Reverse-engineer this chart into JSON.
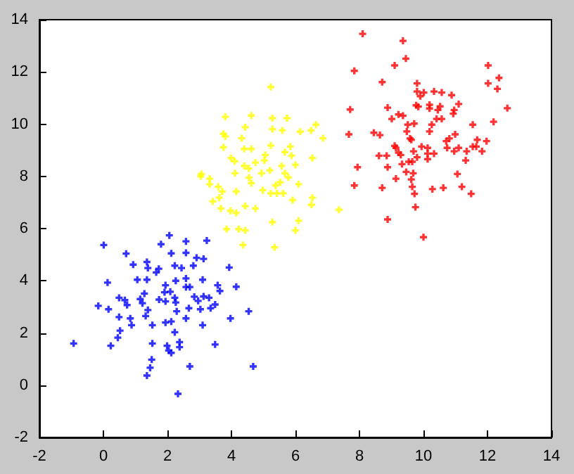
{
  "chart_data": {
    "type": "scatter",
    "xlim": [
      -2,
      14
    ],
    "ylim": [
      -2,
      14
    ],
    "xticks": [
      -2,
      0,
      2,
      4,
      6,
      8,
      10,
      12,
      14
    ],
    "yticks": [
      -2,
      0,
      2,
      4,
      6,
      8,
      10,
      12,
      14
    ],
    "grid": false,
    "marker": "cross",
    "series": [
      {
        "color": "#0000ff",
        "x": [
          2.06,
          0.01,
          1.8,
          2.58,
          0.71,
          2.12,
          2.58,
          2.91,
          3.13,
          3.23,
          1.36,
          0.93,
          1.39,
          1.73,
          2.23,
          2.44,
          2.81,
          1.65,
          3.93,
          0.13,
          1.06,
          1.36,
          1.94,
          2.26,
          2.58,
          3.1,
          2.58,
          2.7,
          3.57,
          4.15,
          1.91,
          2.09,
          1.28,
          2.23,
          0.49,
          0.67,
          1.15,
          2.84,
          3.13,
          3.3,
          3.64,
          1.74,
          1.94,
          2.26,
          2.96,
          3.49,
          -0.16,
          0.74,
          1.22,
          0.16,
          1.39,
          2.29,
          2.67,
          3.03,
          3.35,
          4.54,
          0.49,
          1.32,
          0.84,
          2.58,
          3.97,
          1.94,
          2.12,
          0.88,
          1.53,
          3.1,
          2.23,
          0.52,
          0.45,
          -0.93,
          0.23,
          1.53,
          1.99,
          2.38,
          2.04,
          2.38,
          2.12,
          3.49,
          1.51,
          1.46,
          1.36,
          2.7,
          4.68,
          2.33
        ],
        "values": [
          5.74,
          5.37,
          5.4,
          5.51,
          5.04,
          5.05,
          5.07,
          4.88,
          4.84,
          5.54,
          4.72,
          4.62,
          4.49,
          4.46,
          4.58,
          4.49,
          4.58,
          4.32,
          4.51,
          3.93,
          4.04,
          4.04,
          3.83,
          4.0,
          4.09,
          4.04,
          3.76,
          3.76,
          3.83,
          3.77,
          3.56,
          3.58,
          3.51,
          3.35,
          3.35,
          3.26,
          3.3,
          3.39,
          3.4,
          3.35,
          3.61,
          3.28,
          3.21,
          3.17,
          3.23,
          3.09,
          3.04,
          3.07,
          3.14,
          2.91,
          2.88,
          2.83,
          2.95,
          2.91,
          2.95,
          2.83,
          2.61,
          2.65,
          2.56,
          2.56,
          2.56,
          2.4,
          2.44,
          2.3,
          2.3,
          2.3,
          2.03,
          2.09,
          1.82,
          1.6,
          1.51,
          1.6,
          1.51,
          1.65,
          1.33,
          1.46,
          1.24,
          1.56,
          0.98,
          0.67,
          0.37,
          0.72,
          0.72,
          -0.33
        ]
      },
      {
        "color": "#ffff00",
        "x": [
          5.23,
          3.81,
          4.62,
          5.28,
          5.74,
          4.43,
          5.28,
          5.59,
          6.15,
          6.49,
          6.64,
          6.86,
          3.75,
          3.81,
          4.32,
          3.75,
          4.4,
          4.62,
          5.23,
          5.84,
          5.67,
          5.88,
          5.06,
          3.99,
          4.1,
          4.75,
          5.03,
          6.0,
          6.53,
          4.4,
          4.54,
          5.57,
          5.2,
          5.67,
          4.94,
          4.11,
          3.06,
          3.32,
          4.55,
          5.78,
          6.1,
          4.62,
          3.32,
          5.38,
          5.52,
          3.59,
          3.71,
          4.15,
          4.98,
          5.23,
          5.42,
          5.62,
          3.62,
          3.42,
          6.53,
          5.91,
          4.43,
          4.75,
          3.67,
          3.97,
          4.15,
          6.5,
          7.36,
          5.28,
          6.1,
          3.85,
          4.23,
          4.43,
          6.0,
          4.36,
          5.35,
          3.04
        ],
        "values": [
          11.42,
          10.28,
          10.33,
          10.23,
          10.23,
          9.88,
          9.81,
          9.76,
          9.71,
          9.76,
          9.98,
          9.46,
          9.63,
          9.53,
          9.46,
          9.11,
          9.05,
          9.05,
          9.18,
          9.14,
          8.93,
          8.79,
          8.82,
          8.7,
          8.58,
          8.53,
          8.61,
          8.44,
          8.7,
          8.4,
          8.3,
          8.4,
          8.23,
          8.12,
          8.12,
          8.12,
          8.09,
          7.91,
          7.95,
          7.96,
          7.7,
          7.74,
          7.7,
          7.65,
          7.77,
          7.6,
          7.42,
          7.42,
          7.47,
          7.35,
          7.35,
          7.35,
          7.18,
          7.04,
          7.18,
          7.09,
          6.86,
          6.77,
          6.77,
          6.68,
          6.6,
          6.91,
          6.72,
          6.25,
          6.3,
          5.98,
          5.98,
          5.93,
          5.93,
          5.37,
          5.28,
          8.0
        ]
      },
      {
        "color": "#ff0000",
        "x": [
          8.1,
          9.36,
          9.45,
          9.1,
          7.84,
          8.71,
          12.02,
          12.36,
          12.02,
          12.31,
          12.62,
          9.8,
          9.8,
          9.9,
          10.01,
          10.33,
          10.57,
          10.88,
          11.1,
          10.96,
          10.93,
          10.52,
          10.45,
          10.19,
          10.19,
          9.77,
          9.84,
          8.88,
          7.71,
          9.22,
          9.36,
          9.01,
          9.71,
          9.51,
          10.41,
          10.57,
          10.26,
          11.54,
          12.19,
          10.19,
          9.48,
          8.45,
          8.64,
          7.67,
          9.58,
          9.62,
          10.99,
          10.81,
          10.71,
          11.68,
          11.97,
          9.1,
          9.14,
          9.94,
          10.13,
          10.74,
          10.96,
          11.1,
          11.35,
          11.54,
          11.65,
          11.83,
          9.22,
          9.29,
          8.61,
          8.85,
          9.69,
          10.13,
          10.33,
          9.8,
          10.13,
          11.32,
          9.33,
          9.54,
          9.65,
          8.88,
          7.94,
          9.46,
          9.68,
          11.06,
          9.14,
          9.62,
          7.84,
          8.71,
          9.65,
          10.28,
          10.62,
          11.2,
          11.49,
          9.72,
          9.75,
          8.88,
          10.0
        ],
        "values": [
          13.46,
          13.19,
          12.51,
          12.25,
          12.04,
          11.61,
          12.25,
          11.77,
          11.56,
          11.35,
          10.61,
          11.56,
          11.25,
          11.07,
          11.21,
          11.25,
          11.21,
          11.11,
          10.77,
          10.54,
          10.4,
          10.68,
          10.54,
          10.74,
          10.6,
          10.72,
          10.67,
          10.63,
          10.56,
          10.37,
          10.32,
          10.2,
          10.02,
          9.98,
          10.2,
          10.2,
          9.98,
          9.98,
          10.09,
          9.72,
          9.72,
          9.67,
          9.58,
          9.61,
          9.45,
          9.4,
          9.61,
          9.45,
          9.35,
          9.4,
          9.35,
          9.17,
          9.09,
          9.14,
          9.09,
          9.09,
          8.96,
          9.09,
          8.96,
          9.14,
          9.14,
          8.96,
          8.91,
          8.82,
          8.79,
          8.79,
          8.96,
          8.87,
          8.87,
          8.73,
          8.66,
          8.61,
          8.47,
          8.56,
          8.56,
          8.35,
          8.35,
          8.17,
          8.12,
          8.09,
          7.91,
          7.88,
          7.65,
          7.56,
          7.6,
          7.51,
          7.56,
          7.6,
          7.33,
          7.33,
          6.82,
          6.35,
          5.67
        ]
      }
    ]
  }
}
